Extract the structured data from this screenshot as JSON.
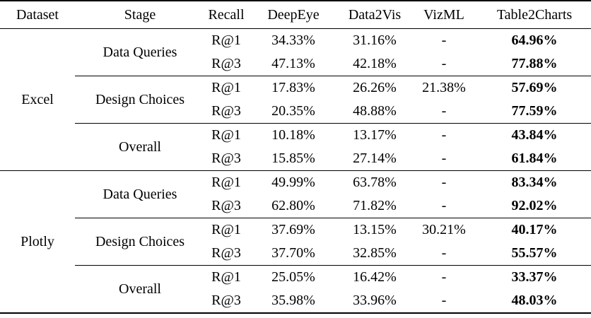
{
  "table": {
    "columns": {
      "dataset": "Dataset",
      "stage": "Stage",
      "recall": "Recall",
      "deepeye": "DeepEye",
      "data2vis": "Data2Vis",
      "vizml": "VizML",
      "table2charts": "Table2Charts"
    },
    "datasets": [
      {
        "name": "Excel",
        "stages": [
          {
            "name": "Data Queries",
            "rows": [
              {
                "recall": "R@1",
                "deepeye": "34.33%",
                "data2vis": "31.16%",
                "vizml": "-",
                "table2charts": "64.96%"
              },
              {
                "recall": "R@3",
                "deepeye": "47.13%",
                "data2vis": "42.18%",
                "vizml": "-",
                "table2charts": "77.88%"
              }
            ]
          },
          {
            "name": "Design Choices",
            "rows": [
              {
                "recall": "R@1",
                "deepeye": "17.83%",
                "data2vis": "26.26%",
                "vizml": "21.38%",
                "table2charts": "57.69%"
              },
              {
                "recall": "R@3",
                "deepeye": "20.35%",
                "data2vis": "48.88%",
                "vizml": "-",
                "table2charts": "77.59%"
              }
            ]
          },
          {
            "name": "Overall",
            "rows": [
              {
                "recall": "R@1",
                "deepeye": "10.18%",
                "data2vis": "13.17%",
                "vizml": "-",
                "table2charts": "43.84%"
              },
              {
                "recall": "R@3",
                "deepeye": "15.85%",
                "data2vis": "27.14%",
                "vizml": "-",
                "table2charts": "61.84%"
              }
            ]
          }
        ]
      },
      {
        "name": "Plotly",
        "stages": [
          {
            "name": "Data Queries",
            "rows": [
              {
                "recall": "R@1",
                "deepeye": "49.99%",
                "data2vis": "63.78%",
                "vizml": "-",
                "table2charts": "83.34%"
              },
              {
                "recall": "R@3",
                "deepeye": "62.80%",
                "data2vis": "71.82%",
                "vizml": "-",
                "table2charts": "92.02%"
              }
            ]
          },
          {
            "name": "Design Choices",
            "rows": [
              {
                "recall": "R@1",
                "deepeye": "37.69%",
                "data2vis": "13.15%",
                "vizml": "30.21%",
                "table2charts": "40.17%"
              },
              {
                "recall": "R@3",
                "deepeye": "37.70%",
                "data2vis": "32.85%",
                "vizml": "-",
                "table2charts": "55.57%"
              }
            ]
          },
          {
            "name": "Overall",
            "rows": [
              {
                "recall": "R@1",
                "deepeye": "25.05%",
                "data2vis": "16.42%",
                "vizml": "-",
                "table2charts": "33.37%"
              },
              {
                "recall": "R@3",
                "deepeye": "35.98%",
                "data2vis": "33.96%",
                "vizml": "-",
                "table2charts": "48.03%"
              }
            ]
          }
        ]
      }
    ]
  }
}
